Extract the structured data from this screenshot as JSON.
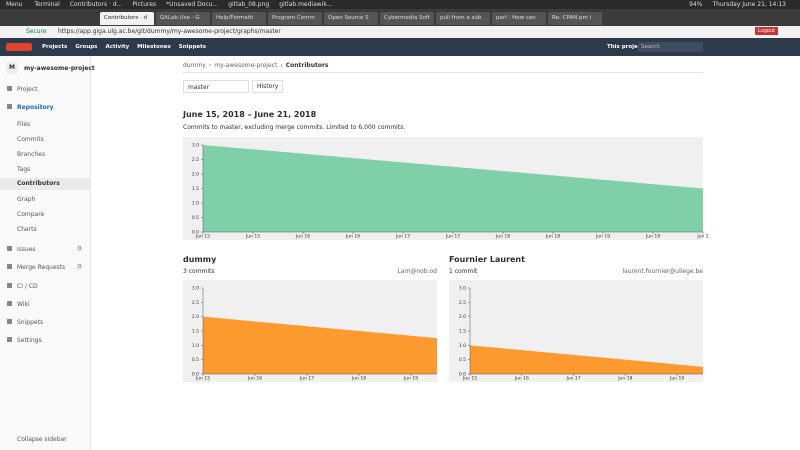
{
  "taskbar": {
    "menu": "Menu",
    "windows": [
      "Terminal",
      "Contributors · d...",
      "Pictures",
      "*Unsaved Docu...",
      "gitlab_08.png",
      "gitlab.mediawik..."
    ],
    "battery": "94%",
    "clock": "Thursday June 21, 14:13"
  },
  "browser": {
    "tabs": [
      "Contributors · d",
      "GitLab.Use - G",
      "Help/Formatti",
      "Program Comm",
      "Open Source S",
      "Cybermedia Soft",
      "pull from a sub",
      "perl - How can",
      "Re: CPAN pm i"
    ],
    "secure": "Secure",
    "url": "https://app.giga.ulg.ac.be/git/dummy/my-awesome-project/graphs/master",
    "logout": "Logout"
  },
  "nav": {
    "items": [
      "Projects",
      "Groups",
      "Activity",
      "Milestones",
      "Snippets"
    ],
    "scope": "This project",
    "search": "Search"
  },
  "sidebar": {
    "avatar": "M",
    "project": "my-awesome-project",
    "items": [
      {
        "label": "Project"
      },
      {
        "label": "Repository"
      },
      {
        "label": "Files"
      },
      {
        "label": "Commits"
      },
      {
        "label": "Branches"
      },
      {
        "label": "Tags"
      },
      {
        "label": "Contributors"
      },
      {
        "label": "Graph"
      },
      {
        "label": "Compare"
      },
      {
        "label": "Charts"
      },
      {
        "label": "Issues",
        "count": 0
      },
      {
        "label": "Merge Requests",
        "count": 0
      },
      {
        "label": "CI / CD"
      },
      {
        "label": "Wiki"
      },
      {
        "label": "Snippets"
      },
      {
        "label": "Settings"
      }
    ],
    "collapse": "Collapse sidebar"
  },
  "breadcrumb": [
    "dummy",
    "my-awesome-project",
    "Contributors"
  ],
  "branch": "master",
  "history": "History",
  "heading": "June 15, 2018 – June 21, 2018",
  "subheading": "Commits to master, excluding merge commits. Limited to 6,000 commits.",
  "contributors": [
    {
      "name": "dummy",
      "commits": "3 commits",
      "email": "Lam@nob.od"
    },
    {
      "name": "Fournier Laurent",
      "commits": "1 commit",
      "email": "laurent.fournier@uliege.be"
    }
  ],
  "chart_data": [
    {
      "type": "area",
      "color": "#7fcfa8",
      "x": [
        0,
        10
      ],
      "values": [
        3.0,
        1.5
      ],
      "xlim": [
        0,
        10
      ],
      "ylim": [
        0,
        3
      ],
      "yticks": [
        {
          "value": 0,
          "label": "0.0"
        },
        0.5,
        {
          "value": 1,
          "label": "1.0"
        },
        1.5,
        {
          "value": 2,
          "label": "2.0"
        },
        2.5,
        {
          "value": 3,
          "label": "3.0"
        }
      ],
      "xticks": [
        {
          "value": 0,
          "label": "Jun 15"
        },
        {
          "value": 1,
          "label": "Jun 15"
        },
        {
          "value": 2,
          "label": "Jun 16"
        },
        {
          "value": 3,
          "label": "Jun 16"
        },
        {
          "value": 4,
          "label": "Jun 17"
        },
        {
          "value": 5,
          "label": "Jun 17"
        },
        {
          "value": 6,
          "label": "Jun 18"
        },
        {
          "value": 7,
          "label": "Jun 18"
        },
        {
          "value": 8,
          "label": "Jun 19"
        },
        {
          "value": 9,
          "label": "Jun 19"
        },
        {
          "value": 10,
          "label": "Jun 2"
        }
      ]
    },
    {
      "type": "area",
      "color": "#fc9a30",
      "x": [
        0,
        4.5
      ],
      "values": [
        2.0,
        1.25
      ],
      "xlim": [
        0,
        4.5
      ],
      "ylim": [
        0,
        3
      ],
      "yticks": [
        {
          "value": 0,
          "label": "0.0"
        },
        0.5,
        {
          "value": 1,
          "label": "1.0"
        },
        1.5,
        {
          "value": 2,
          "label": "2.0"
        },
        2.5,
        {
          "value": 3,
          "label": "3.0"
        }
      ],
      "xticks": [
        {
          "value": 0,
          "label": "Jun 15"
        },
        {
          "value": 1,
          "label": "Jun 16"
        },
        {
          "value": 2,
          "label": "Jun 17"
        },
        {
          "value": 3,
          "label": "Jun 18"
        },
        {
          "value": 4,
          "label": "Jun 19"
        }
      ]
    },
    {
      "type": "area",
      "color": "#fc9a30",
      "x": [
        0,
        4.5
      ],
      "values": [
        1.0,
        0.25
      ],
      "xlim": [
        0,
        4.5
      ],
      "ylim": [
        0,
        3
      ],
      "yticks": [
        {
          "value": 0,
          "label": "0.0"
        },
        0.5,
        {
          "value": 1,
          "label": "1.0"
        },
        1.5,
        {
          "value": 2,
          "label": "2.0"
        },
        2.5,
        {
          "value": 3,
          "label": "3.0"
        }
      ],
      "xticks": [
        {
          "value": 0,
          "label": "Jun 15"
        },
        {
          "value": 1,
          "label": "Jun 16"
        },
        {
          "value": 2,
          "label": "Jun 17"
        },
        {
          "value": 3,
          "label": "Jun 18"
        },
        {
          "value": 4,
          "label": "Jun 19"
        }
      ]
    }
  ]
}
